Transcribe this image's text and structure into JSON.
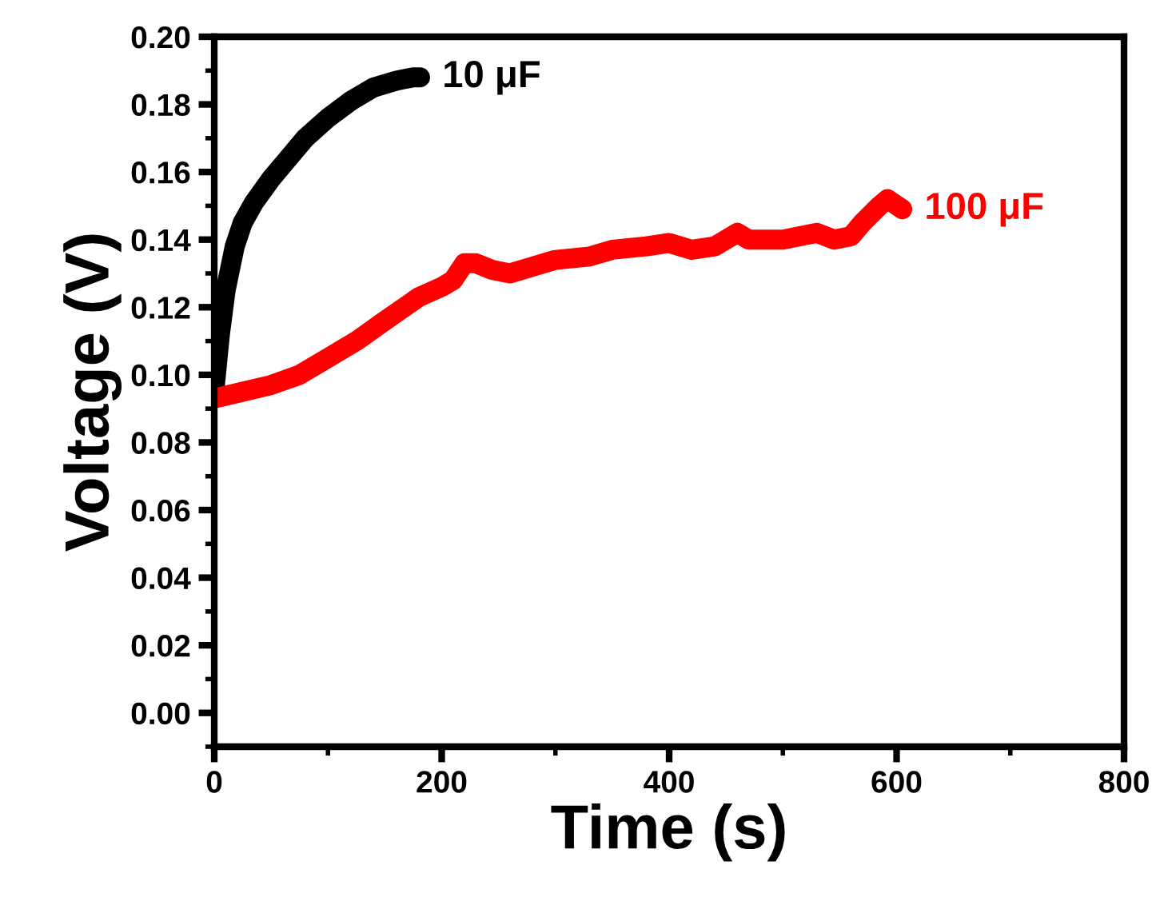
{
  "chart_data": {
    "type": "line",
    "xlabel": "Time (s)",
    "ylabel": "Voltage (V)",
    "xlim": [
      0,
      800
    ],
    "xticks": [
      0,
      200,
      400,
      600,
      800
    ],
    "ylim": [
      -0.01,
      0.2
    ],
    "yticks": [
      {
        "value": 0,
        "label": "0.00"
      },
      {
        "value": 0.02,
        "label": "0.02"
      },
      {
        "value": 0.04,
        "label": "0.04"
      },
      {
        "value": 0.06,
        "label": "0.06"
      },
      {
        "value": 0.08,
        "label": "0.08"
      },
      {
        "value": 0.1,
        "label": "0.10"
      },
      {
        "value": 0.12,
        "label": "0.12"
      },
      {
        "value": 0.14,
        "label": "0.14"
      },
      {
        "value": 0.16,
        "label": "0.16"
      },
      {
        "value": 0.18,
        "label": "0.18"
      },
      {
        "value": 0.2,
        "label": "0.20"
      }
    ],
    "grid": false,
    "legend": false,
    "line_style": "solid",
    "series": [
      {
        "name": "10 μF",
        "color": "#000000",
        "x": [
          0,
          5,
          10,
          18,
          25,
          35,
          50,
          65,
          80,
          100,
          120,
          140,
          160,
          175,
          181
        ],
        "values": [
          0.095,
          0.112,
          0.125,
          0.138,
          0.145,
          0.151,
          0.158,
          0.164,
          0.17,
          0.176,
          0.181,
          0.185,
          0.187,
          0.188,
          0.188
        ]
      },
      {
        "name": "100 μF",
        "color": "#ff0000",
        "x": [
          0,
          25,
          50,
          75,
          100,
          125,
          150,
          180,
          200,
          210,
          220,
          230,
          245,
          260,
          280,
          300,
          330,
          350,
          380,
          400,
          420,
          440,
          460,
          470,
          500,
          530,
          545,
          560,
          570,
          585,
          592,
          605
        ],
        "values": [
          0.093,
          0.095,
          0.097,
          0.1,
          0.105,
          0.11,
          0.116,
          0.123,
          0.126,
          0.128,
          0.133,
          0.133,
          0.131,
          0.13,
          0.132,
          0.134,
          0.135,
          0.137,
          0.138,
          0.139,
          0.137,
          0.138,
          0.142,
          0.14,
          0.14,
          0.142,
          0.14,
          0.141,
          0.145,
          0.15,
          0.152,
          0.149
        ]
      }
    ]
  }
}
